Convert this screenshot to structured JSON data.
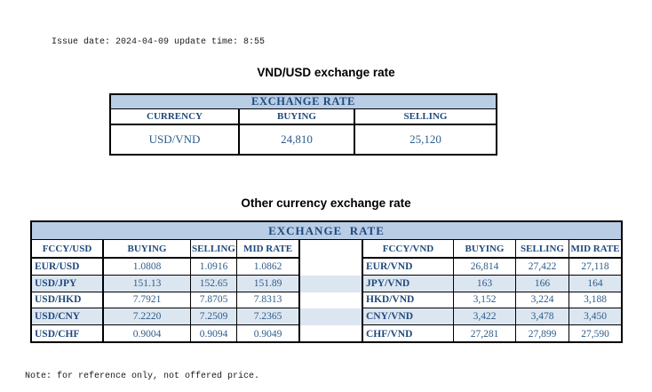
{
  "meta": {
    "issue_line": "Issue date: 2024-04-09 update time: 8:55",
    "note_line": "Note: for reference only, not offered price."
  },
  "colors": {
    "table_header_bg": "#B9CDE5",
    "stripe_row_bg": "#DCE6F1",
    "header_text": "#1F497D",
    "value_text": "#2E5C8A",
    "border": "#000000",
    "page_bg": "#FFFFFF"
  },
  "vnd_usd_section": {
    "title": "VND/USD exchange rate",
    "table": {
      "header": "EXCHANGE RATE",
      "columns": [
        "CURRENCY",
        "BUYING",
        "SELLING"
      ],
      "row": {
        "currency": "USD/VND",
        "buying": "24,810",
        "selling": "25,120"
      }
    }
  },
  "other_section": {
    "title": "Other currency exchange rate",
    "table": {
      "header": "EXCHANGE  RATE",
      "left_columns": [
        "FCCY/USD",
        "BUYING",
        "SELLING",
        "MID RATE"
      ],
      "right_columns": [
        "FCCY/VND",
        "BUYING",
        "SELLING",
        "MID RATE"
      ],
      "rows": [
        {
          "pair_usd": "EUR/USD",
          "usd_buy": "1.0808",
          "usd_sell": "1.0916",
          "usd_mid": "1.0862",
          "pair_vnd": "EUR/VND",
          "vnd_buy": "26,814",
          "vnd_sell": "27,422",
          "vnd_mid": "27,118"
        },
        {
          "pair_usd": "USD/JPY",
          "usd_buy": "151.13",
          "usd_sell": "152.65",
          "usd_mid": "151.89",
          "pair_vnd": "JPY/VND",
          "vnd_buy": "163",
          "vnd_sell": "166",
          "vnd_mid": "164"
        },
        {
          "pair_usd": "USD/HKD",
          "usd_buy": "7.7921",
          "usd_sell": "7.8705",
          "usd_mid": "7.8313",
          "pair_vnd": "HKD/VND",
          "vnd_buy": "3,152",
          "vnd_sell": "3,224",
          "vnd_mid": "3,188"
        },
        {
          "pair_usd": "USD/CNY",
          "usd_buy": "7.2220",
          "usd_sell": "7.2509",
          "usd_mid": "7.2365",
          "pair_vnd": "CNY/VND",
          "vnd_buy": "3,422",
          "vnd_sell": "3,478",
          "vnd_mid": "3,450"
        },
        {
          "pair_usd": "USD/CHF",
          "usd_buy": "0.9004",
          "usd_sell": "0.9094",
          "usd_mid": "0.9049",
          "pair_vnd": "CHF/VND",
          "vnd_buy": "27,281",
          "vnd_sell": "27,899",
          "vnd_mid": "27,590"
        }
      ]
    }
  }
}
